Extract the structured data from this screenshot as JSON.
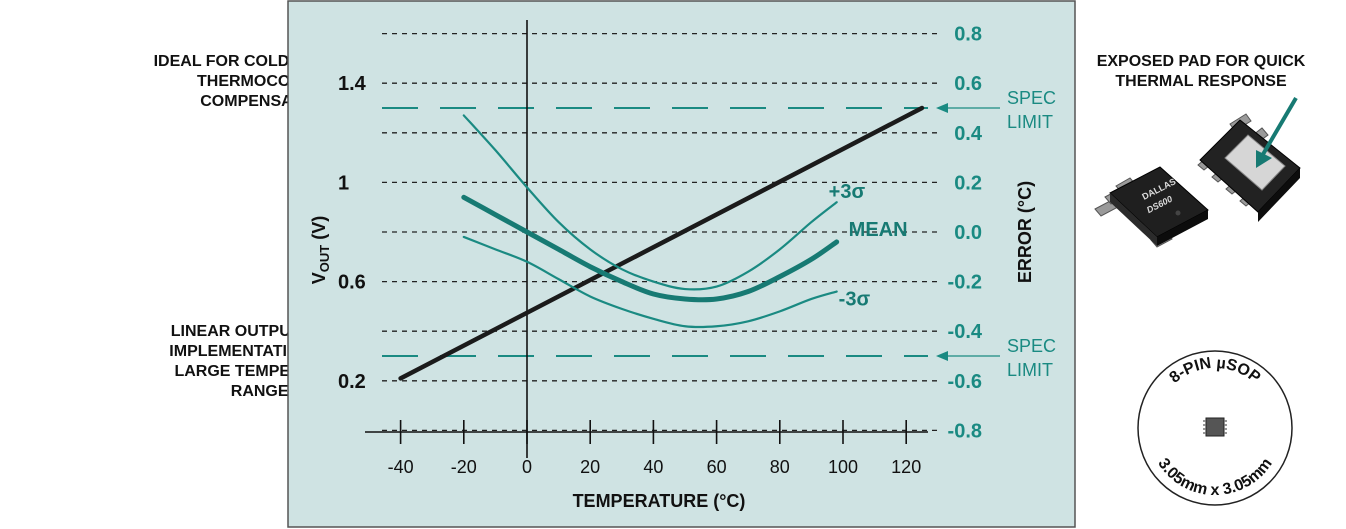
{
  "left_notes": {
    "top": "IDEAL FOR COLD-JUNCTION\nTHERMOCOUPLE\nCOMPENSATION",
    "bottom": "LINEAR OUTPUT EASES\nIMPLEMENTATION OVER\nLARGE TEMPERATURE\nRANGES"
  },
  "right_notes": {
    "pad": "EXPOSED PAD FOR QUICK\nTHERMAL RESPONSE",
    "chip_brand": "DALLAS",
    "chip_part": "DS600",
    "package_top": "8-PIN µSOP",
    "package_bottom": "3.05mm x 3.05mm"
  },
  "colors": {
    "panel_bg": "#cfe3e3",
    "teal": "#1a8a82",
    "dark_teal": "#177a73",
    "black_line": "#1b1b1b"
  },
  "chart_data": {
    "type": "line",
    "xlabel": "TEMPERATURE (°C)",
    "xticks": [
      -40,
      -20,
      0,
      20,
      40,
      60,
      80,
      100,
      120
    ],
    "xlim": [
      -46,
      126
    ],
    "left_axis": {
      "label_main": "V",
      "label_sub": "OUT",
      "label_unit": " (V)",
      "ticks": [
        {
          "value": 1.4,
          "label": "1.4"
        },
        {
          "value": 1.0,
          "label": "1"
        },
        {
          "value": 0.6,
          "label": "0.6"
        },
        {
          "value": 0.2,
          "label": "0.2"
        }
      ]
    },
    "right_axis": {
      "label": "ERROR (°C)",
      "ylim": [
        -0.8,
        0.8
      ],
      "ticks": [
        "0.8",
        "0.6",
        "0.4",
        "0.2",
        "0.0",
        "-0.2",
        "-0.4",
        "-0.6",
        "-0.8"
      ]
    },
    "grid": "dashed horizontal",
    "spec_limits": [
      {
        "value": 0.5,
        "label": "SPEC\nLIMIT"
      },
      {
        "value": -0.5,
        "label": "SPEC\nLIMIT"
      }
    ],
    "series": [
      {
        "name": "VOUT",
        "axis": "left",
        "x": [
          -40,
          125
        ],
        "y": [
          0.21,
          1.3
        ]
      },
      {
        "name": "+3σ",
        "axis": "right",
        "x": [
          -20,
          -10,
          0,
          10,
          20,
          30,
          40,
          50,
          60,
          70,
          80,
          90,
          98
        ],
        "y": [
          0.47,
          0.33,
          0.18,
          0.04,
          -0.07,
          -0.15,
          -0.2,
          -0.23,
          -0.22,
          -0.16,
          -0.07,
          0.04,
          0.12
        ]
      },
      {
        "name": "MEAN",
        "axis": "right",
        "x": [
          -20,
          -10,
          0,
          10,
          20,
          30,
          40,
          50,
          60,
          70,
          80,
          90,
          98
        ],
        "y": [
          0.14,
          0.07,
          0.0,
          -0.07,
          -0.14,
          -0.2,
          -0.25,
          -0.27,
          -0.27,
          -0.24,
          -0.18,
          -0.11,
          -0.04
        ]
      },
      {
        "name": "-3σ",
        "axis": "right",
        "x": [
          -20,
          -10,
          0,
          10,
          20,
          30,
          40,
          50,
          60,
          70,
          80,
          90,
          98
        ],
        "y": [
          -0.02,
          -0.07,
          -0.12,
          -0.19,
          -0.26,
          -0.31,
          -0.35,
          -0.38,
          -0.38,
          -0.36,
          -0.32,
          -0.27,
          -0.24
        ]
      }
    ]
  }
}
